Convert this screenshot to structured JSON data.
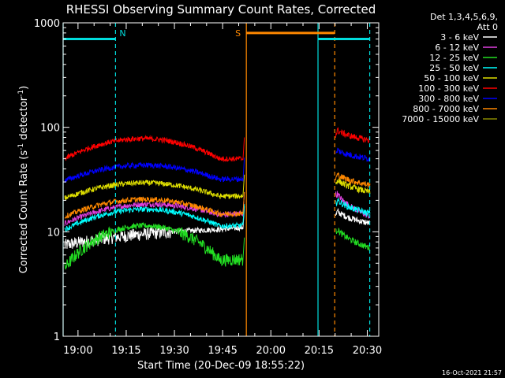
{
  "chart_data": {
    "type": "line",
    "title": "RHESSI Observing Summary Count Rates, Corrected",
    "xlabel": "Start Time (20-Dec-09 18:55:22)",
    "ylabel_main": "Corrected Count Rate (s",
    "ylabel_sup1": "-1",
    "ylabel_mid": " detector",
    "ylabel_sup2": "-1",
    "ylabel_end": ")",
    "yscale": "log",
    "ylim": [
      1,
      1000
    ],
    "xlim_min": [
      18.9228,
      20.5667
    ],
    "x_unit": "minutes since 18:55:22",
    "xtick_labels": [
      "19:00",
      "19:15",
      "19:30",
      "19:45",
      "20:00",
      "20:15",
      "20:30"
    ],
    "xtick_minutes": [
      4.63,
      19.63,
      34.63,
      49.63,
      64.63,
      79.63,
      94.63
    ],
    "ytick_labels": [
      "1",
      "10",
      "100",
      "1000"
    ],
    "ytick_values": [
      1,
      10,
      100,
      1000
    ],
    "legend": {
      "header": "Det 1,3,4,5,6,9,",
      "header2": "Att 0",
      "placement": "outside-right"
    },
    "series": [
      {
        "name": "3 - 6 keV",
        "color": "#ffffff",
        "day": {
          "start": 7.5,
          "peak": 11.5,
          "end": 11
        },
        "night": {
          "start": 17,
          "end": 12
        }
      },
      {
        "name": "6 - 12 keV",
        "color": "#e040e0",
        "day": {
          "start": 12,
          "peak": 20,
          "end": 15
        },
        "night": {
          "start": 27,
          "end": 14
        }
      },
      {
        "name": "12 - 25 keV",
        "color": "#22dd22",
        "day": {
          "start": 4.5,
          "peak": 12,
          "end": 5.5
        },
        "night": {
          "start": 12,
          "end": 7
        }
      },
      {
        "name": "25 - 50 keV",
        "color": "#00ffff",
        "day": {
          "start": 10.5,
          "peak": 17,
          "end": 11.5
        },
        "night": {
          "start": 22,
          "end": 15
        }
      },
      {
        "name": "50 - 100 keV",
        "color": "#dddd00",
        "day": {
          "start": 21,
          "peak": 30,
          "end": 22
        },
        "night": {
          "start": 34,
          "end": 24
        }
      },
      {
        "name": "100 - 300 keV",
        "color": "#ff0000",
        "day": {
          "start": 50,
          "peak": 78,
          "end": 50
        },
        "night": {
          "start": 100,
          "end": 75
        }
      },
      {
        "name": "300 - 800 keV",
        "color": "#0000ff",
        "day": {
          "start": 31,
          "peak": 44,
          "end": 32
        },
        "night": {
          "start": 64,
          "end": 50
        }
      },
      {
        "name": "800 - 7000 keV",
        "color": "#ff8800",
        "day": {
          "start": 14,
          "peak": 21,
          "end": 15
        },
        "night": {
          "start": 38,
          "end": 28
        }
      },
      {
        "name": "7000 - 15000 keV",
        "color": "#888800",
        "day": null,
        "night": null
      }
    ],
    "markers": [
      {
        "label": "N",
        "color": "#00dddd",
        "style": "dashed",
        "minute": 16.3
      },
      {
        "label": "S",
        "color": "#ff8800",
        "style": "solid",
        "minute": 57.0
      },
      {
        "label": "",
        "color": "#ff8800",
        "style": "dashed",
        "minute": 84.5
      },
      {
        "label": "",
        "color": "#00dddd",
        "style": "solid",
        "minute": 0.0
      },
      {
        "label": "",
        "color": "#00dddd",
        "style": "solid",
        "minute": 79.3
      },
      {
        "label": "",
        "color": "#00dddd",
        "style": "dashed",
        "minute": 95.4
      }
    ],
    "flag_bars": [
      {
        "color": "#00dddd",
        "from_minute": 0.0,
        "to_minute": 16.3,
        "value": 700
      },
      {
        "color": "#ff8800",
        "from_minute": 57.0,
        "to_minute": 84.5,
        "value": 800
      },
      {
        "color": "#00dddd",
        "from_minute": 79.3,
        "to_minute": 95.4,
        "value": 700
      }
    ],
    "day_interval_minutes": [
      0.5,
      56.0
    ],
    "night_interval_minutes": [
      84.8,
      95.5
    ]
  },
  "footer_timestamp": "16-Oct-2021 21:57"
}
